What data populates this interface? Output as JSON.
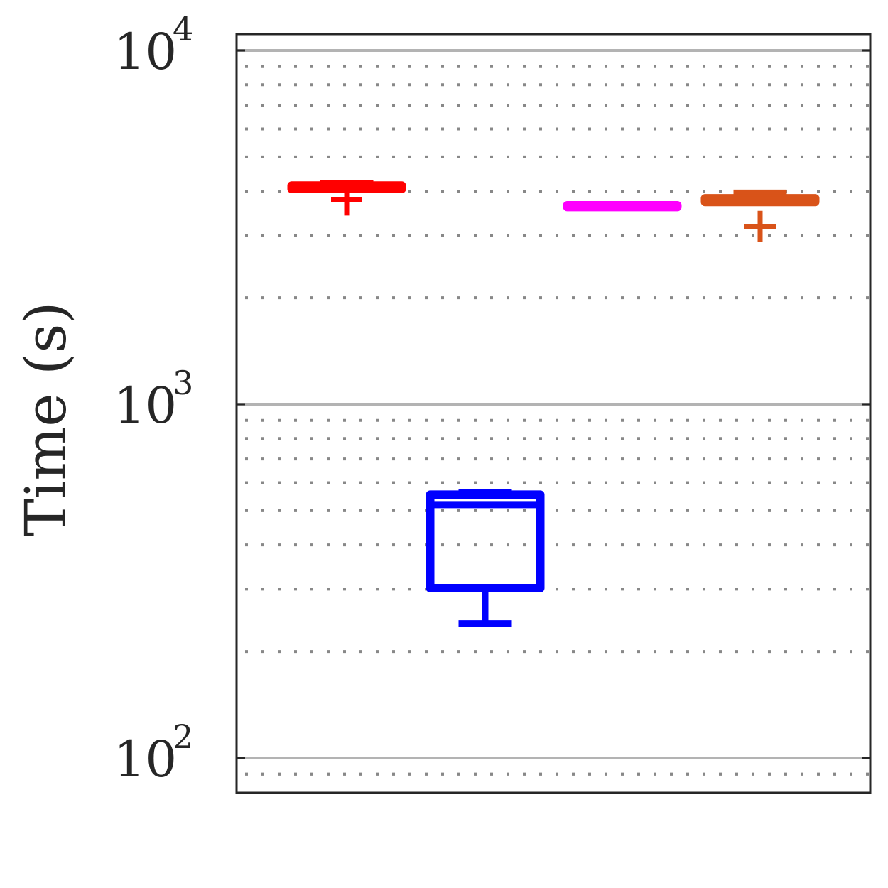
{
  "chart_data": {
    "type": "box",
    "ylabel": "Time (s)",
    "yscale": "log",
    "ylim": [
      80,
      10400
    ],
    "y_ticks": [
      {
        "value": 100,
        "base": "10",
        "exp": "2"
      },
      {
        "value": 1000,
        "base": "10",
        "exp": "3"
      },
      {
        "value": 10000,
        "base": "10",
        "exp": "4"
      }
    ],
    "grid": {
      "major": true,
      "minor": true
    },
    "series": [
      {
        "color": "#ff0000",
        "box": {
          "q1": 4060,
          "median": 4100,
          "q3": 4150,
          "whisker_low": 4050,
          "whisker_high": 4220
        },
        "outliers": [
          3780
        ]
      },
      {
        "color": "#0000ff",
        "box": {
          "q1": 302,
          "median": 520,
          "q3": 555,
          "whisker_low": 240,
          "whisker_high": 565
        },
        "outliers": []
      },
      {
        "color": "#ff00ff",
        "box": {
          "q1": 3610,
          "median": 3630,
          "q3": 3650,
          "whisker_low": 3610,
          "whisker_high": 3650
        },
        "outliers": []
      },
      {
        "color": "#d95319",
        "box": {
          "q1": 3730,
          "median": 3780,
          "q3": 3820,
          "whisker_low": 3720,
          "whisker_high": 3960
        },
        "outliers": [
          3180
        ]
      }
    ]
  }
}
